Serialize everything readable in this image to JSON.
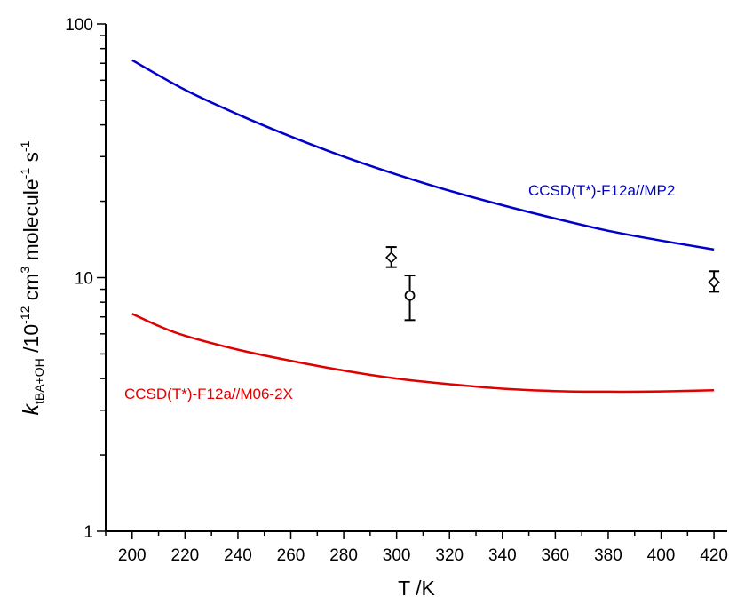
{
  "chart_data": {
    "type": "line",
    "title": "",
    "xlabel": "T /K",
    "ylabel": {
      "k": "k",
      "k_sub": "tBA+OH",
      "unit_a": " /10",
      "exp1": "-12",
      "unit_b": " cm",
      "exp2": "3",
      "unit_c": " molecule",
      "exp3": "-1",
      "unit_d": " s",
      "exp4": "-1"
    },
    "xlim": [
      190,
      425
    ],
    "ylim": [
      1,
      100
    ],
    "yscale": "log",
    "x_ticks": [
      200,
      220,
      240,
      260,
      280,
      300,
      320,
      340,
      360,
      380,
      400,
      420
    ],
    "y_ticks": [
      1,
      10,
      100
    ],
    "y_tick_labels": [
      "1",
      "10",
      "100"
    ],
    "grid": false,
    "series": [
      {
        "name": "CCSD(T*)-F12a//MP2",
        "color": "#0000cc",
        "x": [
          200,
          220,
          240,
          260,
          280,
          300,
          320,
          340,
          360,
          380,
          400,
          420
        ],
        "y": [
          72,
          55,
          44,
          36,
          30,
          25.5,
          22,
          19.3,
          17.1,
          15.3,
          14,
          12.9
        ]
      },
      {
        "name": "CCSD(T*)-F12a//M06-2X",
        "color": "#e00000",
        "x": [
          200,
          210,
          220,
          240,
          260,
          280,
          300,
          320,
          340,
          360,
          380,
          400,
          420
        ],
        "y": [
          7.2,
          6.45,
          5.9,
          5.2,
          4.7,
          4.3,
          4.0,
          3.8,
          3.65,
          3.57,
          3.55,
          3.56,
          3.6
        ]
      }
    ],
    "experimental": [
      {
        "marker": "diamond",
        "x": 298,
        "y": 12.0,
        "yerr": [
          11.0,
          13.2
        ]
      },
      {
        "marker": "circle",
        "x": 305,
        "y": 8.5,
        "yerr": [
          6.8,
          10.2
        ]
      },
      {
        "marker": "diamond",
        "x": 420,
        "y": 9.6,
        "yerr": [
          8.8,
          10.6
        ]
      }
    ]
  }
}
